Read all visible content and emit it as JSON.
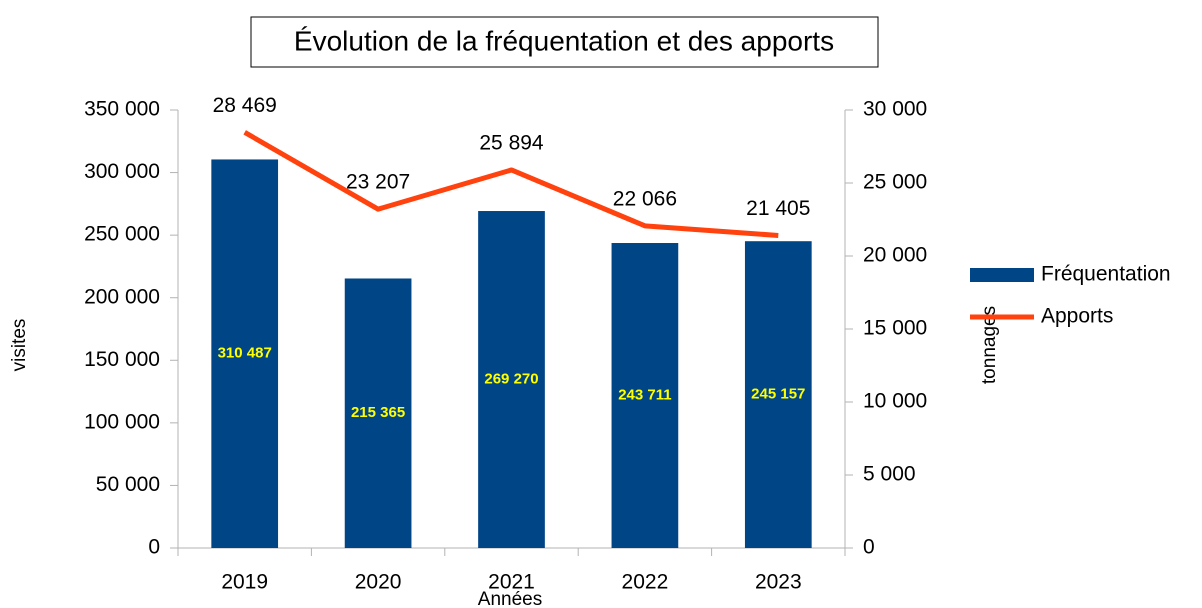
{
  "chart_data": {
    "type": "bar",
    "title": "Évolution de la fréquentation et des apports",
    "xlabel": "Années",
    "ylabel": "visites",
    "y2label": "tonnages",
    "categories": [
      "2019",
      "2020",
      "2021",
      "2022",
      "2023"
    ],
    "series": [
      {
        "name": "Fréquentation",
        "type": "bar",
        "color": "#004586",
        "label_color": "#ffff00",
        "values": [
          310487,
          215365,
          269270,
          243711,
          245157
        ],
        "value_labels": [
          "310 487",
          "215 365",
          "269 270",
          "243 711",
          "245 157"
        ]
      },
      {
        "name": "Apports",
        "type": "line",
        "axis": "y2",
        "color": "#ff420e",
        "label_color": "#000000",
        "values": [
          28469,
          23207,
          25894,
          22066,
          21405
        ],
        "value_labels": [
          "28 469",
          "23 207",
          "25 894",
          "22 066",
          "21 405"
        ]
      }
    ],
    "ylim": [
      0,
      350000
    ],
    "yticks": [
      0,
      {
        "value": 50000,
        "label": "50 000"
      },
      {
        "value": 100000,
        "label": "100 000"
      },
      {
        "value": 150000,
        "label": "150 000"
      },
      {
        "value": 200000,
        "label": "200 000"
      },
      {
        "value": 250000,
        "label": "250 000"
      },
      {
        "value": 300000,
        "label": "300 000"
      },
      {
        "value": 350000,
        "label": "350 000"
      }
    ],
    "y2lim": [
      0,
      30000
    ],
    "y2ticks": [
      0,
      {
        "value": 5000,
        "label": "5 000"
      },
      {
        "value": 10000,
        "label": "10 000"
      },
      {
        "value": 15000,
        "label": "15 000"
      },
      {
        "value": 20000,
        "label": "20 000"
      },
      {
        "value": 25000,
        "label": "25 000"
      },
      {
        "value": 30000,
        "label": "30 000"
      }
    ],
    "legend": "right"
  }
}
